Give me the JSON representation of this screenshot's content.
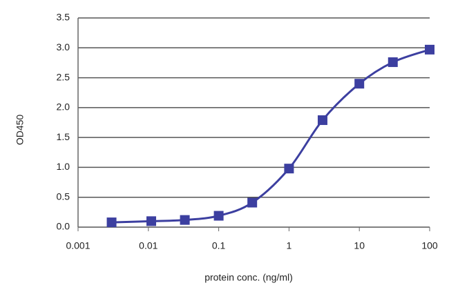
{
  "chart_data": {
    "type": "scatter-line",
    "x_label": "protein conc. (ng/ml)",
    "y_label": "OD450",
    "x": [
      0.003,
      0.011,
      0.033,
      0.1,
      0.3,
      1,
      3,
      10,
      30,
      100
    ],
    "series": [
      {
        "color": "#3c3fa0",
        "values": [
          0.08,
          0.1,
          0.12,
          0.19,
          0.41,
          0.98,
          1.79,
          2.4,
          2.76,
          2.97
        ]
      }
    ],
    "log_x": true,
    "xlim": [
      0.001,
      100
    ],
    "xticks": [
      0.001,
      0.01,
      0.1,
      1,
      10,
      100
    ],
    "ylim": [
      0,
      3.5
    ],
    "yticks": [
      {
        "value": 0,
        "label": "0.0"
      },
      0.5,
      {
        "value": 1,
        "label": "1.0"
      },
      1.5,
      {
        "value": 2,
        "label": "2.0"
      },
      2.5,
      {
        "value": 3,
        "label": "3.0"
      },
      3.5
    ],
    "grid": true
  }
}
